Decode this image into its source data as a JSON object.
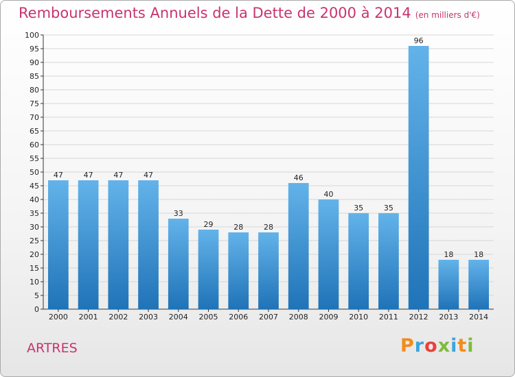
{
  "header": {
    "title": "Remboursements Annuels de la Dette de 2000 à 2014",
    "unit": "(en milliers d'€)"
  },
  "footer": {
    "place": "ARTRES",
    "logo": "Proxiti",
    "logo_colors": [
      "#f08c1e",
      "#3aa5dc",
      "#e8423c",
      "#7dbb3a",
      "#3aa5dc",
      "#f08c1e",
      "#7dbb3a"
    ]
  },
  "colors": {
    "title": "#c8336e",
    "bar_top": "#63b3ea",
    "bar_bottom": "#1f73b7",
    "grid": "#d6d6d6",
    "axis": "#333333"
  },
  "chart_data": {
    "type": "bar",
    "title": "Remboursements Annuels de la Dette de 2000 à 2014",
    "subtitle": "(en milliers d'€)",
    "categories": [
      "2000",
      "2001",
      "2002",
      "2003",
      "2004",
      "2005",
      "2006",
      "2007",
      "2008",
      "2009",
      "2010",
      "2011",
      "2012",
      "2013",
      "2014"
    ],
    "values": [
      47,
      47,
      47,
      47,
      33,
      29,
      28,
      28,
      46,
      40,
      35,
      35,
      96,
      18,
      18
    ],
    "ylim": [
      0,
      100
    ],
    "ytick_step": 5,
    "grid": true,
    "xlabel": "",
    "ylabel": ""
  }
}
